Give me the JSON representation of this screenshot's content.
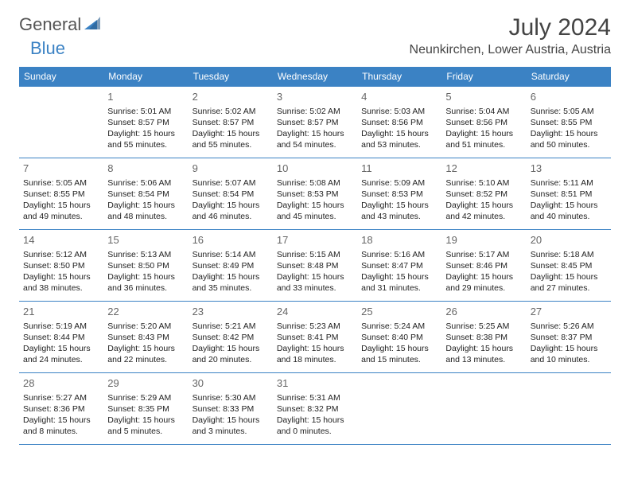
{
  "logo": {
    "part1": "General",
    "part2": "Blue"
  },
  "month_title": "July 2024",
  "location": "Neunkirchen, Lower Austria, Austria",
  "colors": {
    "header_bg": "#3b82c4",
    "header_text": "#ffffff",
    "border": "#3b82c4",
    "logo_gray": "#555555",
    "logo_blue": "#3b82c4"
  },
  "weekdays": [
    "Sunday",
    "Monday",
    "Tuesday",
    "Wednesday",
    "Thursday",
    "Friday",
    "Saturday"
  ],
  "weeks": [
    [
      null,
      {
        "d": "1",
        "sr": "Sunrise: 5:01 AM",
        "ss": "Sunset: 8:57 PM",
        "dl1": "Daylight: 15 hours",
        "dl2": "and 55 minutes."
      },
      {
        "d": "2",
        "sr": "Sunrise: 5:02 AM",
        "ss": "Sunset: 8:57 PM",
        "dl1": "Daylight: 15 hours",
        "dl2": "and 55 minutes."
      },
      {
        "d": "3",
        "sr": "Sunrise: 5:02 AM",
        "ss": "Sunset: 8:57 PM",
        "dl1": "Daylight: 15 hours",
        "dl2": "and 54 minutes."
      },
      {
        "d": "4",
        "sr": "Sunrise: 5:03 AM",
        "ss": "Sunset: 8:56 PM",
        "dl1": "Daylight: 15 hours",
        "dl2": "and 53 minutes."
      },
      {
        "d": "5",
        "sr": "Sunrise: 5:04 AM",
        "ss": "Sunset: 8:56 PM",
        "dl1": "Daylight: 15 hours",
        "dl2": "and 51 minutes."
      },
      {
        "d": "6",
        "sr": "Sunrise: 5:05 AM",
        "ss": "Sunset: 8:55 PM",
        "dl1": "Daylight: 15 hours",
        "dl2": "and 50 minutes."
      }
    ],
    [
      {
        "d": "7",
        "sr": "Sunrise: 5:05 AM",
        "ss": "Sunset: 8:55 PM",
        "dl1": "Daylight: 15 hours",
        "dl2": "and 49 minutes."
      },
      {
        "d": "8",
        "sr": "Sunrise: 5:06 AM",
        "ss": "Sunset: 8:54 PM",
        "dl1": "Daylight: 15 hours",
        "dl2": "and 48 minutes."
      },
      {
        "d": "9",
        "sr": "Sunrise: 5:07 AM",
        "ss": "Sunset: 8:54 PM",
        "dl1": "Daylight: 15 hours",
        "dl2": "and 46 minutes."
      },
      {
        "d": "10",
        "sr": "Sunrise: 5:08 AM",
        "ss": "Sunset: 8:53 PM",
        "dl1": "Daylight: 15 hours",
        "dl2": "and 45 minutes."
      },
      {
        "d": "11",
        "sr": "Sunrise: 5:09 AM",
        "ss": "Sunset: 8:53 PM",
        "dl1": "Daylight: 15 hours",
        "dl2": "and 43 minutes."
      },
      {
        "d": "12",
        "sr": "Sunrise: 5:10 AM",
        "ss": "Sunset: 8:52 PM",
        "dl1": "Daylight: 15 hours",
        "dl2": "and 42 minutes."
      },
      {
        "d": "13",
        "sr": "Sunrise: 5:11 AM",
        "ss": "Sunset: 8:51 PM",
        "dl1": "Daylight: 15 hours",
        "dl2": "and 40 minutes."
      }
    ],
    [
      {
        "d": "14",
        "sr": "Sunrise: 5:12 AM",
        "ss": "Sunset: 8:50 PM",
        "dl1": "Daylight: 15 hours",
        "dl2": "and 38 minutes."
      },
      {
        "d": "15",
        "sr": "Sunrise: 5:13 AM",
        "ss": "Sunset: 8:50 PM",
        "dl1": "Daylight: 15 hours",
        "dl2": "and 36 minutes."
      },
      {
        "d": "16",
        "sr": "Sunrise: 5:14 AM",
        "ss": "Sunset: 8:49 PM",
        "dl1": "Daylight: 15 hours",
        "dl2": "and 35 minutes."
      },
      {
        "d": "17",
        "sr": "Sunrise: 5:15 AM",
        "ss": "Sunset: 8:48 PM",
        "dl1": "Daylight: 15 hours",
        "dl2": "and 33 minutes."
      },
      {
        "d": "18",
        "sr": "Sunrise: 5:16 AM",
        "ss": "Sunset: 8:47 PM",
        "dl1": "Daylight: 15 hours",
        "dl2": "and 31 minutes."
      },
      {
        "d": "19",
        "sr": "Sunrise: 5:17 AM",
        "ss": "Sunset: 8:46 PM",
        "dl1": "Daylight: 15 hours",
        "dl2": "and 29 minutes."
      },
      {
        "d": "20",
        "sr": "Sunrise: 5:18 AM",
        "ss": "Sunset: 8:45 PM",
        "dl1": "Daylight: 15 hours",
        "dl2": "and 27 minutes."
      }
    ],
    [
      {
        "d": "21",
        "sr": "Sunrise: 5:19 AM",
        "ss": "Sunset: 8:44 PM",
        "dl1": "Daylight: 15 hours",
        "dl2": "and 24 minutes."
      },
      {
        "d": "22",
        "sr": "Sunrise: 5:20 AM",
        "ss": "Sunset: 8:43 PM",
        "dl1": "Daylight: 15 hours",
        "dl2": "and 22 minutes."
      },
      {
        "d": "23",
        "sr": "Sunrise: 5:21 AM",
        "ss": "Sunset: 8:42 PM",
        "dl1": "Daylight: 15 hours",
        "dl2": "and 20 minutes."
      },
      {
        "d": "24",
        "sr": "Sunrise: 5:23 AM",
        "ss": "Sunset: 8:41 PM",
        "dl1": "Daylight: 15 hours",
        "dl2": "and 18 minutes."
      },
      {
        "d": "25",
        "sr": "Sunrise: 5:24 AM",
        "ss": "Sunset: 8:40 PM",
        "dl1": "Daylight: 15 hours",
        "dl2": "and 15 minutes."
      },
      {
        "d": "26",
        "sr": "Sunrise: 5:25 AM",
        "ss": "Sunset: 8:38 PM",
        "dl1": "Daylight: 15 hours",
        "dl2": "and 13 minutes."
      },
      {
        "d": "27",
        "sr": "Sunrise: 5:26 AM",
        "ss": "Sunset: 8:37 PM",
        "dl1": "Daylight: 15 hours",
        "dl2": "and 10 minutes."
      }
    ],
    [
      {
        "d": "28",
        "sr": "Sunrise: 5:27 AM",
        "ss": "Sunset: 8:36 PM",
        "dl1": "Daylight: 15 hours",
        "dl2": "and 8 minutes."
      },
      {
        "d": "29",
        "sr": "Sunrise: 5:29 AM",
        "ss": "Sunset: 8:35 PM",
        "dl1": "Daylight: 15 hours",
        "dl2": "and 5 minutes."
      },
      {
        "d": "30",
        "sr": "Sunrise: 5:30 AM",
        "ss": "Sunset: 8:33 PM",
        "dl1": "Daylight: 15 hours",
        "dl2": "and 3 minutes."
      },
      {
        "d": "31",
        "sr": "Sunrise: 5:31 AM",
        "ss": "Sunset: 8:32 PM",
        "dl1": "Daylight: 15 hours",
        "dl2": "and 0 minutes."
      },
      null,
      null,
      null
    ]
  ]
}
